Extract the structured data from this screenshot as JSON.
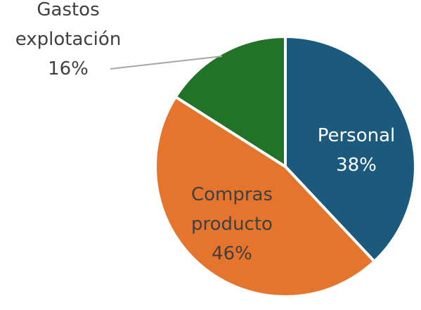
{
  "chart_data": {
    "type": "pie",
    "slices": [
      {
        "label_lines": [
          "Personal",
          "38%"
        ],
        "value": 38,
        "color": "#1b5a7d",
        "label_color": "#ffffff"
      },
      {
        "label_lines": [
          "Compras",
          "producto",
          "46%"
        ],
        "value": 46,
        "color": "#e5752d",
        "label_color": "#404040"
      },
      {
        "label_lines": [
          "Gastos",
          "explotación",
          "16%"
        ],
        "value": 16,
        "color": "#217327",
        "label_color": "#404040"
      }
    ],
    "start": "12 o'clock",
    "direction": "clockwise",
    "slice_separator_color": "#ffffff",
    "leader_line_color": "#a6a6a6"
  }
}
